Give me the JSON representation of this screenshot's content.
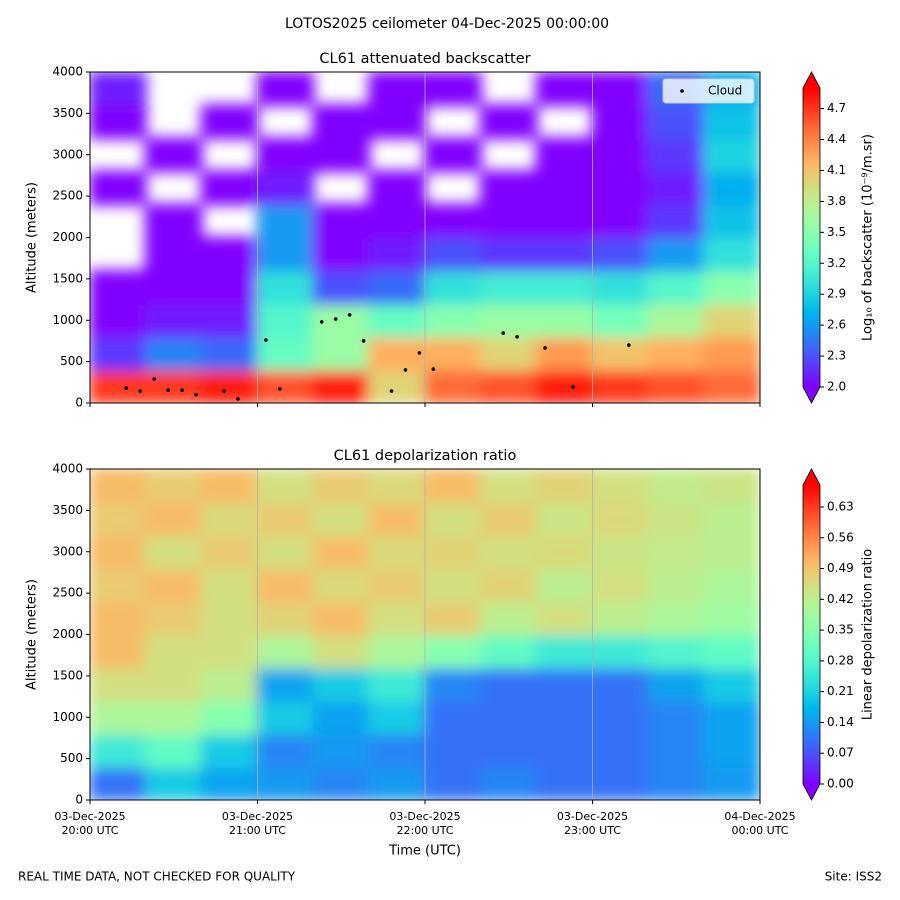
{
  "title": "LOTOS2025 ceilometer 04-Dec-2025 00:00:00",
  "footer_left": "REAL TIME DATA, NOT CHECKED FOR QUALITY",
  "footer_right": "Site: ISS2",
  "chart_data": [
    {
      "type": "contour",
      "title": "CL61 attenuated backscatter",
      "ylabel": "Altitude (meters)",
      "colormap": "rainbow",
      "clim": [
        2.0,
        4.9
      ],
      "grid": true,
      "legend": "upper right",
      "xlim": [
        "2025-12-03 20:00",
        "2025-12-04 00:00"
      ],
      "xticks": [
        "2025-12-03 20:00",
        "2025-12-03 21:00",
        "2025-12-03 22:00",
        "2025-12-03 23:00",
        "2025-12-04 00:00"
      ],
      "ylim": [
        0,
        4000
      ],
      "yticks": [
        0,
        500,
        1000,
        1500,
        2000,
        2500,
        3000,
        3500,
        4000
      ],
      "x": [
        "2025-12-03 20:00",
        "2025-12-03 20:20",
        "2025-12-03 20:40",
        "2025-12-03 21:00",
        "2025-12-03 21:20",
        "2025-12-03 21:40",
        "2025-12-03 22:00",
        "2025-12-03 22:20",
        "2025-12-03 22:40",
        "2025-12-03 23:00",
        "2025-12-03 23:20",
        "2025-12-03 23:40"
      ],
      "y": [
        0,
        400,
        800,
        1200,
        1600,
        2000,
        2400,
        2800,
        3200,
        3600
      ],
      "z": [
        [
          4.7,
          4.7,
          4.8,
          4.6,
          4.8,
          4.0,
          4.5,
          4.6,
          4.8,
          4.7,
          4.6,
          4.5
        ],
        [
          2.2,
          2.5,
          2.4,
          3.3,
          3.6,
          4.2,
          4.2,
          4.0,
          4.3,
          4.1,
          4.2,
          4.3
        ],
        [
          2.0,
          2.1,
          2.1,
          3.2,
          3.6,
          3.3,
          3.5,
          3.6,
          3.6,
          3.4,
          3.7,
          4.0
        ],
        [
          2.0,
          2.0,
          2.0,
          3.0,
          2.3,
          2.4,
          3.0,
          3.1,
          3.1,
          3.0,
          3.2,
          3.5
        ],
        [
          null,
          2.0,
          2.0,
          2.6,
          2.0,
          2.1,
          2.3,
          2.2,
          2.2,
          2.3,
          2.6,
          3.0
        ],
        [
          null,
          2.0,
          null,
          2.6,
          2.0,
          2.0,
          2.0,
          2.0,
          2.0,
          2.0,
          2.2,
          2.8
        ],
        [
          2.0,
          null,
          2.0,
          2.1,
          null,
          2.0,
          null,
          2.0,
          2.0,
          2.0,
          2.1,
          2.7
        ],
        [
          null,
          2.0,
          null,
          2.0,
          2.0,
          null,
          2.0,
          null,
          2.0,
          2.0,
          2.2,
          2.9
        ],
        [
          2.0,
          null,
          2.0,
          null,
          2.0,
          2.0,
          null,
          2.0,
          null,
          2.0,
          2.3,
          2.8
        ],
        [
          2.1,
          null,
          null,
          2.0,
          null,
          2.0,
          2.0,
          null,
          2.0,
          2.0,
          2.4,
          2.7
        ]
      ],
      "points": {
        "name": "Cloud",
        "color": "#000000",
        "x": [
          "2025-12-03 20:13",
          "2025-12-03 20:18",
          "2025-12-03 20:23",
          "2025-12-03 20:28",
          "2025-12-03 20:33",
          "2025-12-03 20:38",
          "2025-12-03 20:48",
          "2025-12-03 20:53",
          "2025-12-03 21:03",
          "2025-12-03 21:08",
          "2025-12-03 21:23",
          "2025-12-03 21:28",
          "2025-12-03 21:33",
          "2025-12-03 21:38",
          "2025-12-03 21:48",
          "2025-12-03 21:53",
          "2025-12-03 21:58",
          "2025-12-03 22:03",
          "2025-12-03 22:28",
          "2025-12-03 22:33",
          "2025-12-03 22:43",
          "2025-12-03 22:53",
          "2025-12-03 23:13"
        ],
        "y": [
          180,
          145,
          290,
          155,
          155,
          100,
          145,
          50,
          760,
          170,
          980,
          1015,
          1065,
          750,
          145,
          400,
          605,
          410,
          845,
          800,
          665,
          195,
          700
        ]
      },
      "colorbar": {
        "label": "Log₁₀ of backscatter (10⁻⁹/m.sr)",
        "ticks": [
          {
            "value": 2.0,
            "label": "2.0"
          },
          2.3,
          2.6,
          2.9,
          3.2,
          3.5,
          3.8,
          4.1,
          4.4,
          4.7
        ]
      }
    },
    {
      "type": "contour",
      "title": "CL61 depolarization ratio",
      "ylabel": "Altitude (meters)",
      "xlabel": "Time (UTC)",
      "colormap": "rainbow",
      "clim": [
        0,
        0.68
      ],
      "grid": true,
      "xlim": [
        "2025-12-03 20:00",
        "2025-12-04 00:00"
      ],
      "xticks": [
        {
          "value": "2025-12-03 20:00",
          "label": "03-Dec-2025\n20:00 UTC"
        },
        {
          "value": "2025-12-03 21:00",
          "label": "03-Dec-2025\n21:00 UTC"
        },
        {
          "value": "2025-12-03 22:00",
          "label": "03-Dec-2025\n22:00 UTC"
        },
        {
          "value": "2025-12-03 23:00",
          "label": "03-Dec-2025\n23:00 UTC"
        },
        {
          "value": "2025-12-04 00:00",
          "label": "04-Dec-2025\n00:00 UTC"
        }
      ],
      "ylim": [
        0,
        4000
      ],
      "yticks": [
        0,
        500,
        1000,
        1500,
        2000,
        2500,
        3000,
        3500,
        4000
      ],
      "x": [
        "2025-12-03 20:00",
        "2025-12-03 20:20",
        "2025-12-03 20:40",
        "2025-12-03 21:00",
        "2025-12-03 21:20",
        "2025-12-03 21:40",
        "2025-12-03 22:00",
        "2025-12-03 22:20",
        "2025-12-03 22:40",
        "2025-12-03 23:00",
        "2025-12-03 23:20",
        "2025-12-03 23:40"
      ],
      "y": [
        0,
        400,
        800,
        1200,
        1600,
        2000,
        2400,
        2800,
        3200,
        3600
      ],
      "z": [
        [
          0.1,
          0.2,
          0.15,
          0.14,
          0.12,
          0.14,
          0.1,
          0.12,
          0.1,
          0.1,
          0.12,
          0.14
        ],
        [
          0.25,
          0.3,
          0.2,
          0.12,
          0.14,
          0.12,
          0.1,
          0.1,
          0.1,
          0.1,
          0.12,
          0.15
        ],
        [
          0.4,
          0.4,
          0.35,
          0.2,
          0.15,
          0.2,
          0.1,
          0.1,
          0.1,
          0.1,
          0.12,
          0.15
        ],
        [
          0.45,
          0.45,
          0.42,
          0.15,
          0.2,
          0.25,
          0.12,
          0.1,
          0.1,
          0.1,
          0.15,
          0.2
        ],
        [
          0.5,
          0.45,
          0.45,
          0.4,
          0.45,
          0.4,
          0.35,
          0.3,
          0.25,
          0.25,
          0.28,
          0.3
        ],
        [
          0.5,
          0.48,
          0.45,
          0.47,
          0.5,
          0.45,
          0.48,
          0.42,
          0.45,
          0.42,
          0.4,
          0.38
        ],
        [
          0.48,
          0.5,
          0.45,
          0.5,
          0.46,
          0.48,
          0.45,
          0.47,
          0.42,
          0.45,
          0.42,
          0.4
        ],
        [
          0.5,
          0.45,
          0.48,
          0.45,
          0.5,
          0.46,
          0.47,
          0.45,
          0.46,
          0.44,
          0.43,
          0.42
        ],
        [
          0.48,
          0.5,
          0.46,
          0.48,
          0.45,
          0.5,
          0.45,
          0.48,
          0.44,
          0.46,
          0.44,
          0.42
        ],
        [
          0.5,
          0.48,
          0.5,
          0.45,
          0.48,
          0.46,
          0.5,
          0.45,
          0.47,
          0.45,
          0.43,
          0.44
        ]
      ],
      "colorbar": {
        "label": "Linear depolarization ratio",
        "ticks": [
          {
            "value": 0,
            "label": "0.00"
          },
          0.07,
          0.14,
          0.21,
          0.28,
          0.35,
          0.42,
          0.49,
          0.56,
          0.63
        ]
      }
    }
  ]
}
